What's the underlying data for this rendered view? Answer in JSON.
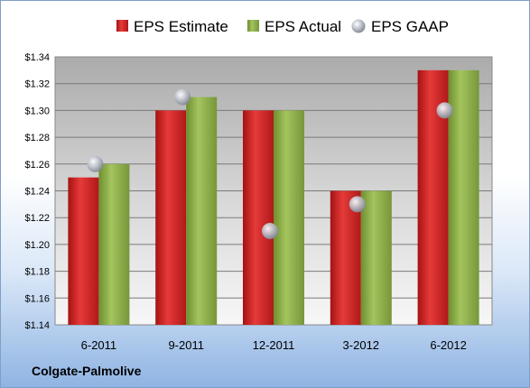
{
  "company_name": "Colgate-Palmolive",
  "colors": {
    "estimate": "#d42424",
    "actual": "#8db04a",
    "gaap": "#a8aeb8"
  },
  "chart_data": {
    "type": "bar",
    "categories": [
      "6-2011",
      "9-2011",
      "12-2011",
      "3-2012",
      "6-2012"
    ],
    "series": [
      {
        "name": "EPS Estimate",
        "values": [
          1.25,
          1.3,
          1.3,
          1.24,
          1.33
        ]
      },
      {
        "name": "EPS Actual",
        "values": [
          1.26,
          1.31,
          1.3,
          1.24,
          1.33
        ]
      },
      {
        "name": "EPS GAAP",
        "type": "scatter",
        "values": [
          1.26,
          1.31,
          1.21,
          1.23,
          1.3
        ]
      }
    ],
    "ylim": [
      1.14,
      1.34
    ],
    "ytick_step": 0.02,
    "ytick_labels": [
      "$1.14",
      "$1.16",
      "$1.18",
      "$1.20",
      "$1.22",
      "$1.24",
      "$1.26",
      "$1.28",
      "$1.30",
      "$1.32",
      "$1.34"
    ],
    "grid": true,
    "legend_position": "top"
  }
}
